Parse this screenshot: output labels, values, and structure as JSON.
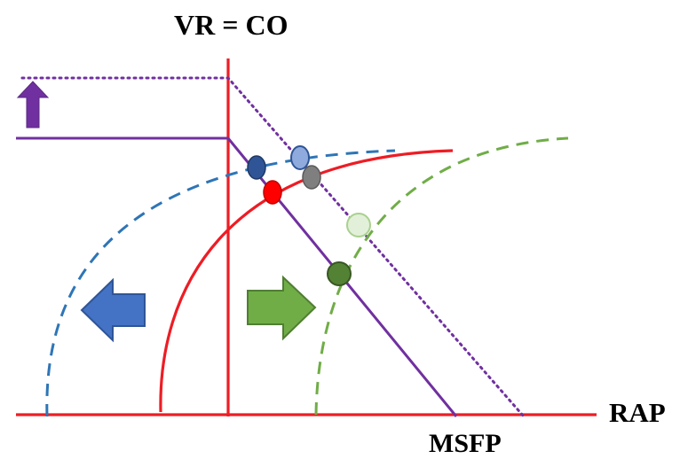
{
  "diagram": {
    "title": "VR = CO",
    "x_axis_label": "RAP",
    "intercept_label": "MSFP"
  },
  "colors": {
    "axes": "#ee1c24",
    "venous_return_baseline": "#7030a0",
    "venous_return_shifted": "#7030a0",
    "cardiac_function_normal": "#ee1c24",
    "cardiac_function_improved": "#2e75b6",
    "cardiac_function_depressed": "#70ad47",
    "arrow_up": "#7030a0",
    "arrow_left": "#4472c4",
    "arrow_right": "#70ad47",
    "point_red": "#ff0000",
    "point_dark_blue": "#2f5597",
    "point_light_blue": "#8faadc",
    "point_gray": "#7f7f7f",
    "point_dark_green": "#548235",
    "point_light_green": "#e2f0d9"
  },
  "icons": {
    "arrow_up": "arrow-up-icon",
    "arrow_left": "arrow-left-icon",
    "arrow_right": "arrow-right-icon"
  }
}
